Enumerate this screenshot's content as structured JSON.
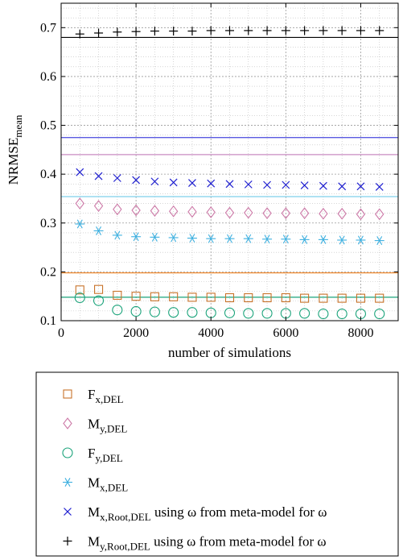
{
  "chart_data": {
    "type": "scatter",
    "title": "",
    "xlabel": "number of simulations",
    "ylabel": "NRMSE",
    "ylabel_sub": "mean",
    "xlim": [
      0,
      9000
    ],
    "ylim": [
      0.1,
      0.75
    ],
    "axis_break_at": 0.68,
    "x_ticks": [
      0,
      2000,
      4000,
      6000,
      8000
    ],
    "y_ticks": [
      0.1,
      0.2,
      0.3,
      0.4,
      0.5,
      0.6,
      0.7
    ],
    "grid": true,
    "legend_position": "below",
    "x": [
      500,
      1000,
      1500,
      2000,
      2500,
      3000,
      3500,
      4000,
      4500,
      5000,
      5500,
      6000,
      6500,
      7000,
      7500,
      8000,
      8500
    ],
    "series": [
      {
        "name": "F",
        "sub": "x,DEL",
        "suffix": "",
        "marker": "square",
        "color": "#c8732a",
        "values": [
          0.163,
          0.164,
          0.152,
          0.15,
          0.149,
          0.149,
          0.148,
          0.148,
          0.147,
          0.147,
          0.147,
          0.147,
          0.146,
          0.146,
          0.146,
          0.146,
          0.146
        ]
      },
      {
        "name": "M",
        "sub": "y,DEL",
        "suffix": "",
        "marker": "diamond",
        "color": "#cc79a7",
        "values": [
          0.34,
          0.335,
          0.328,
          0.326,
          0.325,
          0.324,
          0.323,
          0.322,
          0.321,
          0.321,
          0.32,
          0.32,
          0.32,
          0.319,
          0.319,
          0.318,
          0.318
        ]
      },
      {
        "name": "F",
        "sub": "y,DEL",
        "suffix": "",
        "marker": "circle",
        "color": "#1aa37a",
        "values": [
          0.147,
          0.141,
          0.122,
          0.119,
          0.118,
          0.117,
          0.117,
          0.116,
          0.116,
          0.115,
          0.115,
          0.115,
          0.115,
          0.114,
          0.114,
          0.114,
          0.114
        ]
      },
      {
        "name": "M",
        "sub": "x,DEL",
        "suffix": "",
        "marker": "asterisk",
        "color": "#3fb0e0",
        "values": [
          0.298,
          0.284,
          0.275,
          0.272,
          0.271,
          0.27,
          0.269,
          0.268,
          0.268,
          0.268,
          0.267,
          0.267,
          0.266,
          0.266,
          0.265,
          0.265,
          0.264
        ]
      },
      {
        "name": "M",
        "sub": "x,Root,DEL",
        "suffix": " using ω from meta-model for ω",
        "marker": "x",
        "color": "#1f1fd0",
        "values": [
          0.404,
          0.396,
          0.392,
          0.388,
          0.385,
          0.383,
          0.382,
          0.381,
          0.38,
          0.379,
          0.378,
          0.378,
          0.377,
          0.376,
          0.375,
          0.375,
          0.374
        ]
      },
      {
        "name": "M",
        "sub": "y,Root,DEL",
        "suffix": " using ω from meta-model for ω",
        "marker": "plus",
        "color": "#000000",
        "values": [
          0.687,
          0.689,
          0.691,
          0.692,
          0.693,
          0.693,
          0.693,
          0.694,
          0.694,
          0.694,
          0.694,
          0.694,
          0.694,
          0.694,
          0.694,
          0.694,
          0.694
        ]
      }
    ],
    "reference_lines": [
      {
        "y": 0.475,
        "color": "#5a5ae0"
      },
      {
        "y": 0.44,
        "color": "#c98cc2"
      },
      {
        "y": 0.354,
        "color": "#7fd0ea"
      },
      {
        "y": 0.198,
        "color": "#f08a30"
      },
      {
        "y": 0.148,
        "color": "#1aa37a"
      }
    ]
  }
}
